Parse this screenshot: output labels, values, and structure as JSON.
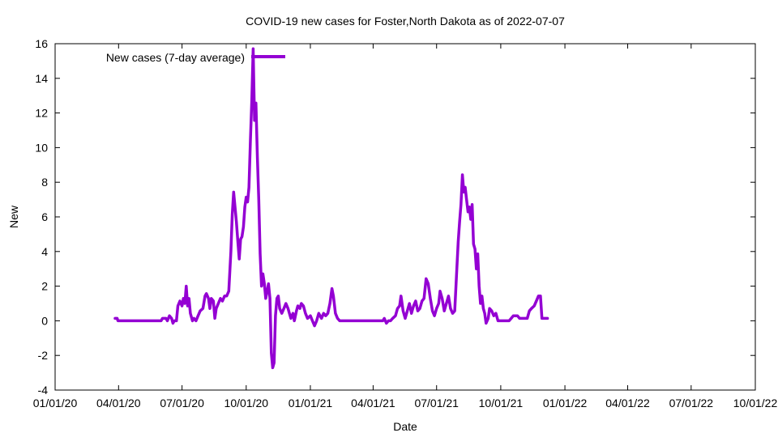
{
  "chart_data": {
    "type": "line",
    "title": "COVID-19 new cases for Foster,North Dakota as of 2022-07-07",
    "xlabel": "Date",
    "ylabel": "New",
    "xlim": [
      "2020-01-01",
      "2022-10-01"
    ],
    "ylim": [
      -4,
      16
    ],
    "x_ticks": [
      {
        "date": "2020-01-01",
        "label": "01/01/20"
      },
      {
        "date": "2020-04-01",
        "label": "04/01/20"
      },
      {
        "date": "2020-07-01",
        "label": "07/01/20"
      },
      {
        "date": "2020-10-01",
        "label": "10/01/20"
      },
      {
        "date": "2021-01-01",
        "label": "01/01/21"
      },
      {
        "date": "2021-04-01",
        "label": "04/01/21"
      },
      {
        "date": "2021-07-01",
        "label": "07/01/21"
      },
      {
        "date": "2021-10-01",
        "label": "10/01/21"
      },
      {
        "date": "2022-01-01",
        "label": "01/01/22"
      },
      {
        "date": "2022-04-01",
        "label": "04/01/22"
      },
      {
        "date": "2022-07-01",
        "label": "07/01/22"
      },
      {
        "date": "2022-10-01",
        "label": "10/01/22"
      }
    ],
    "y_ticks": [
      {
        "value": -4,
        "label": "-4"
      },
      {
        "value": -2,
        "label": "-2"
      },
      {
        "value": 0,
        "label": "0"
      },
      {
        "value": 2,
        "label": "2"
      },
      {
        "value": 4,
        "label": "4"
      },
      {
        "value": 6,
        "label": "6"
      },
      {
        "value": 8,
        "label": "8"
      },
      {
        "value": 10,
        "label": "10"
      },
      {
        "value": 12,
        "label": "12"
      },
      {
        "value": 14,
        "label": "14"
      },
      {
        "value": 16,
        "label": "16"
      }
    ],
    "grid": false,
    "legend": {
      "position": "top-left"
    },
    "series": [
      {
        "name": "New cases (7-day average)",
        "color": "#9400d3",
        "points": [
          [
            "2020-03-27",
            0.14
          ],
          [
            "2020-03-30",
            0.14
          ],
          [
            "2020-03-31",
            0.0
          ],
          [
            "2020-06-01",
            0.0
          ],
          [
            "2020-06-03",
            0.14
          ],
          [
            "2020-06-08",
            0.14
          ],
          [
            "2020-06-10",
            0.0
          ],
          [
            "2020-06-13",
            0.29
          ],
          [
            "2020-06-16",
            0.14
          ],
          [
            "2020-06-18",
            -0.14
          ],
          [
            "2020-06-20",
            0.0
          ],
          [
            "2020-06-23",
            0.0
          ],
          [
            "2020-06-25",
            0.86
          ],
          [
            "2020-06-28",
            1.14
          ],
          [
            "2020-07-01",
            0.86
          ],
          [
            "2020-07-03",
            1.29
          ],
          [
            "2020-07-05",
            1.0
          ],
          [
            "2020-07-07",
            2.0
          ],
          [
            "2020-07-09",
            0.86
          ],
          [
            "2020-07-11",
            1.29
          ],
          [
            "2020-07-13",
            0.43
          ],
          [
            "2020-07-16",
            0.0
          ],
          [
            "2020-07-18",
            0.14
          ],
          [
            "2020-07-21",
            0.0
          ],
          [
            "2020-07-24",
            0.29
          ],
          [
            "2020-07-27",
            0.57
          ],
          [
            "2020-07-31",
            0.71
          ],
          [
            "2020-08-03",
            1.43
          ],
          [
            "2020-08-05",
            1.57
          ],
          [
            "2020-08-08",
            1.29
          ],
          [
            "2020-08-10",
            0.71
          ],
          [
            "2020-08-12",
            1.29
          ],
          [
            "2020-08-15",
            1.14
          ],
          [
            "2020-08-17",
            0.14
          ],
          [
            "2020-08-19",
            0.71
          ],
          [
            "2020-08-22",
            1.0
          ],
          [
            "2020-08-25",
            1.29
          ],
          [
            "2020-08-28",
            1.14
          ],
          [
            "2020-08-31",
            1.43
          ],
          [
            "2020-09-03",
            1.43
          ],
          [
            "2020-09-06",
            1.71
          ],
          [
            "2020-09-09",
            4.0
          ],
          [
            "2020-09-11",
            6.14
          ],
          [
            "2020-09-13",
            7.43
          ],
          [
            "2020-09-15",
            6.57
          ],
          [
            "2020-09-17",
            5.71
          ],
          [
            "2020-09-19",
            4.57
          ],
          [
            "2020-09-21",
            3.57
          ],
          [
            "2020-09-23",
            4.71
          ],
          [
            "2020-09-25",
            4.86
          ],
          [
            "2020-09-27",
            5.43
          ],
          [
            "2020-09-29",
            6.57
          ],
          [
            "2020-10-01",
            7.14
          ],
          [
            "2020-10-03",
            6.86
          ],
          [
            "2020-10-05",
            7.71
          ],
          [
            "2020-10-07",
            10.43
          ],
          [
            "2020-10-09",
            12.71
          ],
          [
            "2020-10-11",
            15.71
          ],
          [
            "2020-10-12",
            13.43
          ],
          [
            "2020-10-13",
            11.57
          ],
          [
            "2020-10-15",
            12.57
          ],
          [
            "2020-10-17",
            9.43
          ],
          [
            "2020-10-19",
            7.0
          ],
          [
            "2020-10-21",
            3.86
          ],
          [
            "2020-10-23",
            2.0
          ],
          [
            "2020-10-25",
            2.71
          ],
          [
            "2020-10-27",
            2.14
          ],
          [
            "2020-10-29",
            1.29
          ],
          [
            "2020-10-31",
            1.71
          ],
          [
            "2020-11-02",
            2.14
          ],
          [
            "2020-11-04",
            1.29
          ],
          [
            "2020-11-06",
            -1.86
          ],
          [
            "2020-11-08",
            -2.71
          ],
          [
            "2020-11-10",
            -2.43
          ],
          [
            "2020-11-12",
            0.29
          ],
          [
            "2020-11-14",
            1.29
          ],
          [
            "2020-11-16",
            1.43
          ],
          [
            "2020-11-18",
            0.71
          ],
          [
            "2020-11-21",
            0.43
          ],
          [
            "2020-11-24",
            0.71
          ],
          [
            "2020-11-27",
            1.0
          ],
          [
            "2020-11-30",
            0.71
          ],
          [
            "2020-12-02",
            0.43
          ],
          [
            "2020-12-04",
            0.14
          ],
          [
            "2020-12-07",
            0.43
          ],
          [
            "2020-12-09",
            0.0
          ],
          [
            "2020-12-12",
            0.57
          ],
          [
            "2020-12-14",
            0.86
          ],
          [
            "2020-12-17",
            0.71
          ],
          [
            "2020-12-19",
            1.0
          ],
          [
            "2020-12-22",
            0.86
          ],
          [
            "2020-12-25",
            0.43
          ],
          [
            "2020-12-28",
            0.14
          ],
          [
            "2021-01-01",
            0.29
          ],
          [
            "2021-01-04",
            0.0
          ],
          [
            "2021-01-07",
            -0.29
          ],
          [
            "2021-01-10",
            0.0
          ],
          [
            "2021-01-13",
            0.43
          ],
          [
            "2021-01-17",
            0.14
          ],
          [
            "2021-01-20",
            0.43
          ],
          [
            "2021-01-23",
            0.29
          ],
          [
            "2021-01-26",
            0.43
          ],
          [
            "2021-01-29",
            1.0
          ],
          [
            "2021-02-01",
            1.86
          ],
          [
            "2021-02-03",
            1.43
          ],
          [
            "2021-02-06",
            0.43
          ],
          [
            "2021-02-09",
            0.14
          ],
          [
            "2021-02-12",
            0.0
          ],
          [
            "2021-04-15",
            0.0
          ],
          [
            "2021-04-17",
            0.14
          ],
          [
            "2021-04-20",
            -0.14
          ],
          [
            "2021-04-23",
            0.0
          ],
          [
            "2021-04-26",
            0.0
          ],
          [
            "2021-04-29",
            0.14
          ],
          [
            "2021-05-03",
            0.29
          ],
          [
            "2021-05-06",
            0.71
          ],
          [
            "2021-05-09",
            0.86
          ],
          [
            "2021-05-11",
            1.43
          ],
          [
            "2021-05-14",
            0.57
          ],
          [
            "2021-05-17",
            0.14
          ],
          [
            "2021-05-20",
            0.57
          ],
          [
            "2021-05-23",
            1.0
          ],
          [
            "2021-05-26",
            0.43
          ],
          [
            "2021-05-29",
            0.86
          ],
          [
            "2021-06-01",
            1.14
          ],
          [
            "2021-06-04",
            0.57
          ],
          [
            "2021-06-07",
            0.71
          ],
          [
            "2021-06-10",
            1.14
          ],
          [
            "2021-06-13",
            1.29
          ],
          [
            "2021-06-16",
            2.43
          ],
          [
            "2021-06-19",
            2.14
          ],
          [
            "2021-06-22",
            1.29
          ],
          [
            "2021-06-25",
            0.57
          ],
          [
            "2021-06-28",
            0.29
          ],
          [
            "2021-07-01",
            0.71
          ],
          [
            "2021-07-04",
            1.0
          ],
          [
            "2021-07-06",
            1.71
          ],
          [
            "2021-07-09",
            1.29
          ],
          [
            "2021-07-12",
            0.57
          ],
          [
            "2021-07-15",
            1.0
          ],
          [
            "2021-07-18",
            1.43
          ],
          [
            "2021-07-21",
            0.71
          ],
          [
            "2021-07-24",
            0.43
          ],
          [
            "2021-07-27",
            0.57
          ],
          [
            "2021-07-30",
            3.0
          ],
          [
            "2021-08-01",
            4.57
          ],
          [
            "2021-08-03",
            5.71
          ],
          [
            "2021-08-05",
            6.71
          ],
          [
            "2021-08-07",
            8.43
          ],
          [
            "2021-08-09",
            7.43
          ],
          [
            "2021-08-11",
            7.71
          ],
          [
            "2021-08-13",
            7.0
          ],
          [
            "2021-08-15",
            6.29
          ],
          [
            "2021-08-17",
            6.57
          ],
          [
            "2021-08-19",
            5.86
          ],
          [
            "2021-08-21",
            6.71
          ],
          [
            "2021-08-23",
            4.43
          ],
          [
            "2021-08-25",
            4.14
          ],
          [
            "2021-08-27",
            3.0
          ],
          [
            "2021-08-29",
            3.86
          ],
          [
            "2021-08-31",
            2.0
          ],
          [
            "2021-09-02",
            1.0
          ],
          [
            "2021-09-04",
            1.43
          ],
          [
            "2021-09-06",
            0.71
          ],
          [
            "2021-09-08",
            0.43
          ],
          [
            "2021-09-10",
            -0.14
          ],
          [
            "2021-09-13",
            0.14
          ],
          [
            "2021-09-15",
            0.71
          ],
          [
            "2021-09-18",
            0.57
          ],
          [
            "2021-09-21",
            0.29
          ],
          [
            "2021-09-24",
            0.43
          ],
          [
            "2021-09-27",
            0.0
          ],
          [
            "2021-10-13",
            0.0
          ],
          [
            "2021-10-16",
            0.14
          ],
          [
            "2021-10-19",
            0.29
          ],
          [
            "2021-10-25",
            0.29
          ],
          [
            "2021-10-28",
            0.14
          ],
          [
            "2021-11-08",
            0.14
          ],
          [
            "2021-11-11",
            0.57
          ],
          [
            "2021-11-14",
            0.71
          ],
          [
            "2021-11-18",
            0.86
          ],
          [
            "2021-11-21",
            1.14
          ],
          [
            "2021-11-24",
            1.43
          ],
          [
            "2021-11-27",
            1.43
          ],
          [
            "2021-11-29",
            0.14
          ],
          [
            "2021-12-02",
            0.14
          ],
          [
            "2021-12-07",
            0.14
          ]
        ]
      }
    ]
  }
}
